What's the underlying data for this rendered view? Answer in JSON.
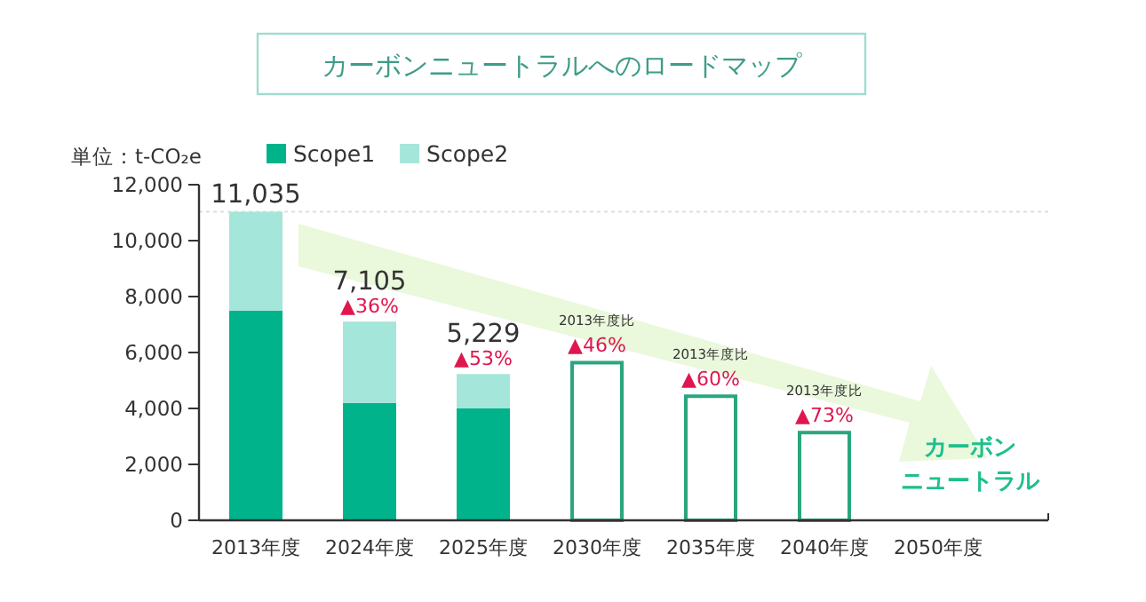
{
  "chart_data": {
    "type": "bar",
    "title": "カーボンニュートラルへのロードマップ",
    "ylabel": "単位：t-CO₂e",
    "categories": [
      "2013年度",
      "2024年度",
      "2025年度",
      "2030年度",
      "2035年度",
      "2040年度",
      "2050年度"
    ],
    "stacked": true,
    "series": [
      {
        "name": "Scope1",
        "color": "#00b38a",
        "values": [
          7500,
          4200,
          4000,
          null,
          null,
          null,
          null
        ]
      },
      {
        "name": "Scope2",
        "color": "#a5e6da",
        "values": [
          3535,
          2905,
          1229,
          null,
          null,
          null,
          null
        ]
      },
      {
        "color": "#2aa67f",
        "values": [
          null,
          null,
          null,
          5700,
          4500,
          3200,
          null
        ]
      }
    ],
    "totals": [
      "11,035",
      "7,105",
      "5,229",
      null,
      null,
      null,
      null
    ],
    "ylim": [
      0,
      12000
    ],
    "yticks": [
      0,
      {
        "value": 2000,
        "label": "2,000"
      },
      {
        "value": 4000,
        "label": "4,000"
      },
      {
        "value": 6000,
        "label": "6,000"
      },
      {
        "value": 8000,
        "label": "8,000"
      },
      {
        "value": 10000,
        "label": "10,000"
      },
      {
        "value": 12000,
        "label": "12,000"
      }
    ],
    "ref_lines": [
      {
        "axis": "y",
        "value": 11035,
        "color": "#dddddd",
        "line_style": "dotted"
      }
    ],
    "annotations": [
      {
        "text": "▲36%",
        "x": "2024年度",
        "y": 7105
      },
      {
        "text": "▲53%",
        "x": "2025年度",
        "y": 5229
      },
      {
        "text": "2013年度比",
        "x": "2030年度",
        "y": 5700
      },
      {
        "text": "▲46%",
        "x": "2030年度",
        "y": 5700
      },
      {
        "text": "2013年度比",
        "x": "2035年度",
        "y": 4500
      },
      {
        "text": "▲60%",
        "x": "2035年度",
        "y": 4500
      },
      {
        "text": "2013年度比",
        "x": "2040年度",
        "y": 3200
      },
      {
        "text": "▲73%",
        "x": "2040年度",
        "y": 3200
      },
      "カーボン",
      "ニュートラル"
    ],
    "legend": "top left",
    "grid": false
  }
}
